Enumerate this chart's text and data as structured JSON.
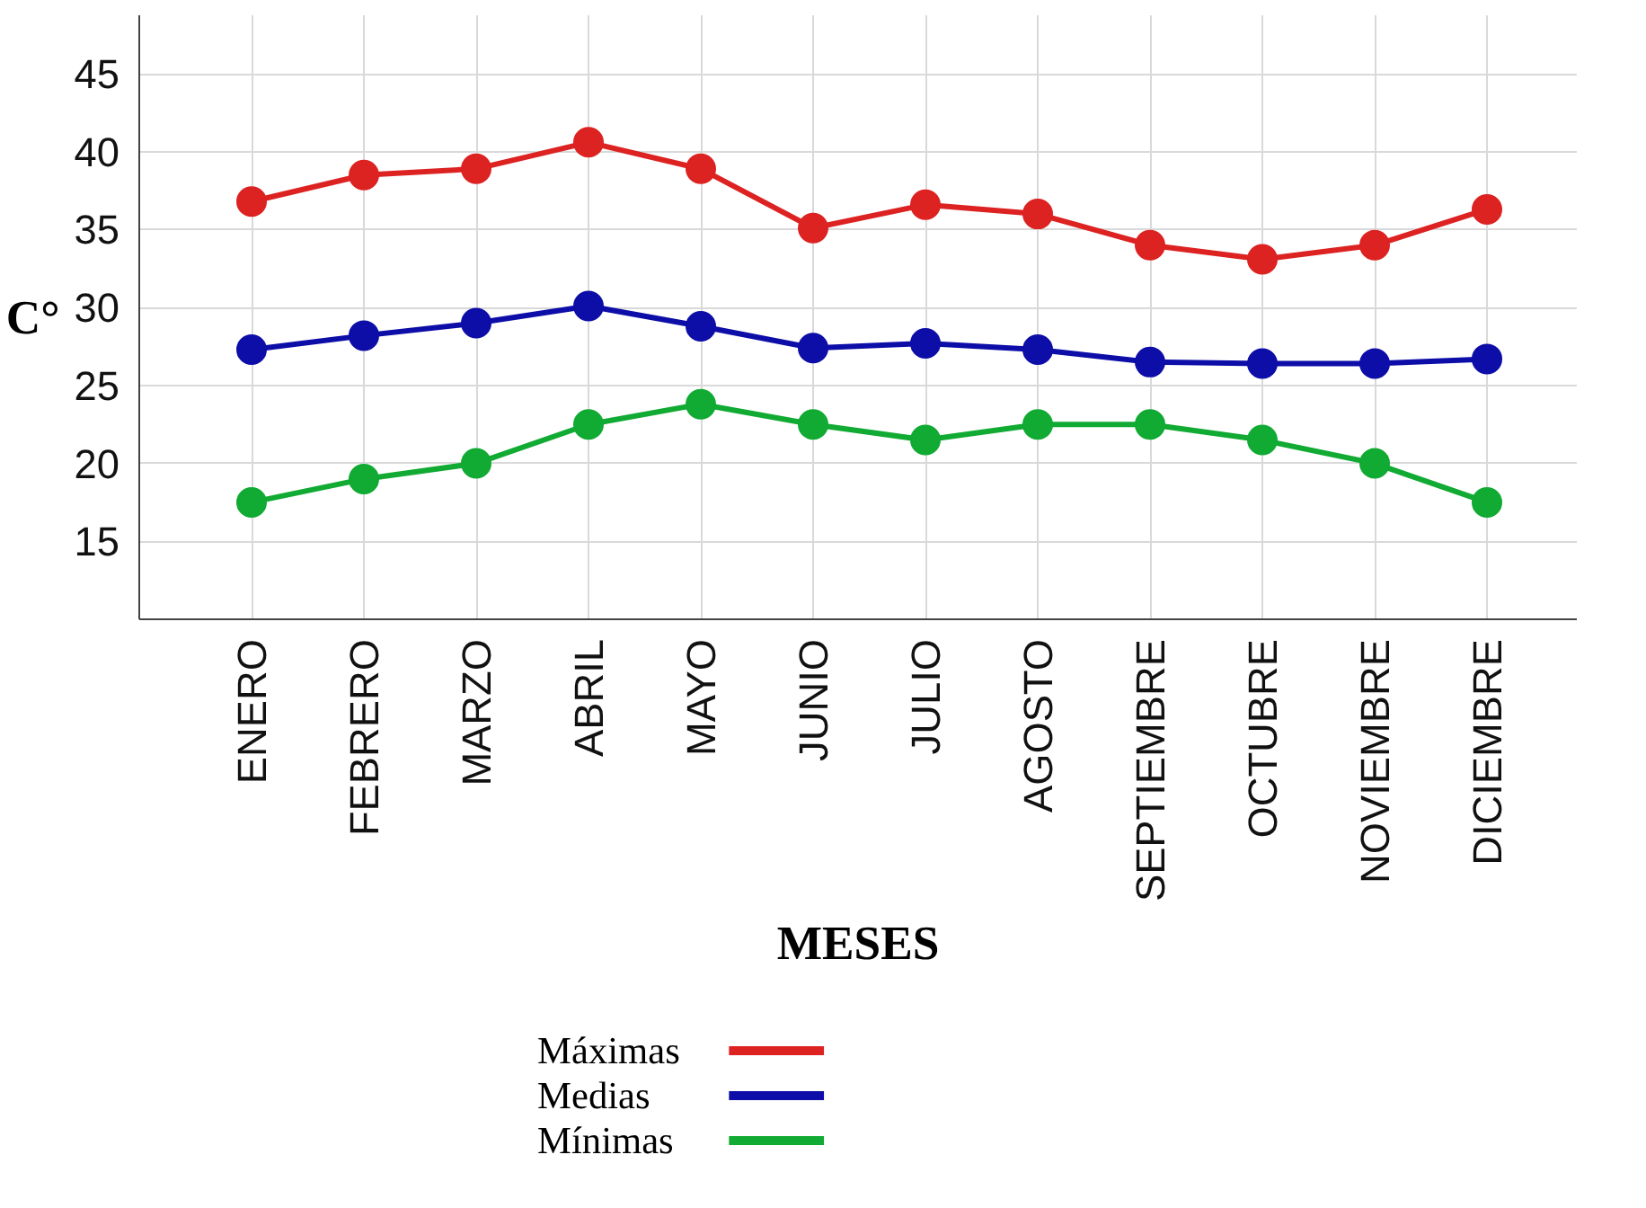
{
  "chart_data": {
    "type": "line",
    "xlabel": "MESES",
    "ylabel": "C°",
    "categories": [
      "ENERO",
      "FEBRERO",
      "MARZO",
      "ABRIL",
      "MAYO",
      "JUNIO",
      "JULIO",
      "AGOSTO",
      "SEPTIEMBRE",
      "OCTUBRE",
      "NOVIEMBRE",
      "DICIEMBRE"
    ],
    "series": [
      {
        "name": "Máximas",
        "color": "#dd2222",
        "values": [
          36.8,
          38.5,
          38.9,
          40.6,
          38.9,
          35.1,
          36.6,
          36.0,
          34.0,
          33.1,
          34.0,
          36.3
        ]
      },
      {
        "name": "Medias",
        "color": "#0d0da8",
        "values": [
          27.3,
          28.2,
          29.0,
          30.1,
          28.8,
          27.4,
          27.7,
          27.3,
          26.5,
          26.4,
          26.4,
          26.7
        ]
      },
      {
        "name": "Mínimas",
        "color": "#11aa33",
        "values": [
          17.5,
          19.0,
          20.0,
          22.5,
          23.8,
          22.5,
          21.5,
          22.5,
          22.5,
          21.5,
          20.0,
          17.5
        ]
      }
    ],
    "ylim": [
      10,
      48.75
    ],
    "yticks": [
      15,
      20,
      25,
      30,
      35,
      40,
      45
    ],
    "grid": true,
    "legend": "bottom",
    "marker": "circle",
    "line_style": "solid"
  }
}
